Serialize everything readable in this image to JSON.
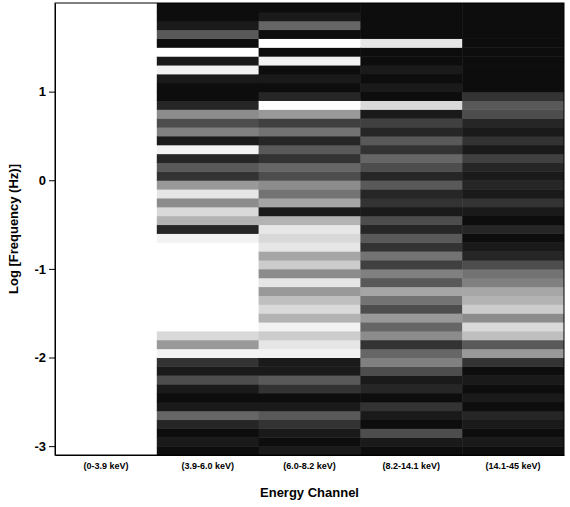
{
  "chart_data": {
    "type": "heatmap",
    "x_label": "Energy Channel",
    "y_label": "Log [Frequency (Hz)]",
    "categories": [
      "(0-3.9 keV)",
      "(3.9-6.0 keV)",
      "(6.0-8.2 keV)",
      "(8.2-14.1 keV)",
      "(14.1-45 keV)"
    ],
    "y_edges": [
      -3.1,
      -3.0,
      -2.9,
      -2.8,
      -2.7,
      -2.6,
      -2.5,
      -2.4,
      -2.3,
      -2.2,
      -2.1,
      -2.0,
      -1.9,
      -1.8,
      -1.7,
      -1.6,
      -1.5,
      -1.4,
      -1.3,
      -1.2,
      -1.1,
      -1.0,
      -0.9,
      -0.8,
      -0.7,
      -0.6,
      -0.5,
      -0.4,
      -0.3,
      -0.2,
      -0.1,
      0.0,
      0.1,
      0.2,
      0.3,
      0.4,
      0.5,
      0.6,
      0.7,
      0.8,
      0.9,
      1.0,
      1.1,
      1.2,
      1.3,
      1.4,
      1.5,
      1.6,
      1.7,
      1.8,
      1.9,
      2.0
    ],
    "values": [
      [
        1,
        1,
        1,
        1,
        1,
        1,
        1,
        1,
        1,
        1,
        1,
        1,
        1,
        1,
        1,
        1,
        1,
        1,
        1,
        1,
        1,
        1,
        1,
        1,
        1,
        1,
        1,
        1,
        1,
        1,
        1,
        1,
        1,
        1,
        1,
        1,
        1,
        1,
        1,
        1,
        1,
        1,
        1,
        1,
        1,
        1,
        1,
        1,
        1,
        1,
        1
      ],
      [
        0.05,
        0.1,
        0.05,
        0.15,
        0.4,
        0.1,
        0.05,
        0.1,
        0.3,
        0.1,
        0.2,
        0.95,
        0.6,
        0.85,
        1,
        1,
        1,
        1,
        1,
        1,
        1,
        1,
        1,
        1,
        0.95,
        0.15,
        0.7,
        0.85,
        0.55,
        0.9,
        0.6,
        0.2,
        0.35,
        0.15,
        0.95,
        0.1,
        0.5,
        0.3,
        0.55,
        0.15,
        0.05,
        0.05,
        0.1,
        0.95,
        0.1,
        1,
        0.05,
        0.35,
        0.1,
        0.05,
        0.05
      ],
      [
        0.1,
        0.05,
        0.1,
        0.2,
        0.35,
        0.1,
        0.05,
        0.2,
        0.35,
        0.1,
        0.1,
        0.95,
        0.9,
        0.8,
        0.95,
        0.7,
        0.85,
        0.75,
        0.6,
        0.9,
        0.55,
        0.8,
        0.65,
        0.9,
        0.85,
        0.9,
        0.7,
        0.1,
        0.65,
        0.45,
        0.55,
        0.3,
        0.4,
        0.2,
        0.35,
        0.15,
        0.45,
        0.25,
        0.6,
        1,
        0.15,
        0.05,
        0.1,
        0.05,
        0.95,
        0.05,
        1,
        0.05,
        0.4,
        0.1,
        0.05
      ],
      [
        0.05,
        0.1,
        0.3,
        0.05,
        0.1,
        0.2,
        0.05,
        0.15,
        0.1,
        0.3,
        0.5,
        0.4,
        0.2,
        0.55,
        0.4,
        0.6,
        0.3,
        0.45,
        0.65,
        0.35,
        0.5,
        0.25,
        0.45,
        0.2,
        0.35,
        0.15,
        0.3,
        0.1,
        0.2,
        0.15,
        0.35,
        0.15,
        0.3,
        0.4,
        0.2,
        0.35,
        0.15,
        0.25,
        0.1,
        0.85,
        0.05,
        0.1,
        0.05,
        0.1,
        0.05,
        0.05,
        0.9,
        0.05,
        0.05,
        0.05,
        0.05
      ],
      [
        0.05,
        0.1,
        0.05,
        0.1,
        0.15,
        0.05,
        0.1,
        0.05,
        0.1,
        0.05,
        0.2,
        0.6,
        0.35,
        0.75,
        0.85,
        0.55,
        0.8,
        0.7,
        0.65,
        0.5,
        0.45,
        0.3,
        0.15,
        0.1,
        0.05,
        0.15,
        0.05,
        0.1,
        0.2,
        0.1,
        0.15,
        0.1,
        0.15,
        0.25,
        0.1,
        0.2,
        0.1,
        0.15,
        0.3,
        0.35,
        0.2,
        0.05,
        0.05,
        0.05,
        0.05,
        0.05,
        0.05,
        0.05,
        0.05,
        0.05,
        0.05
      ]
    ],
    "zlim": [
      0,
      1
    ],
    "ylim": [
      -3.1,
      2.0
    ],
    "yticks": [
      -3,
      -2,
      -1,
      0,
      1
    ]
  }
}
